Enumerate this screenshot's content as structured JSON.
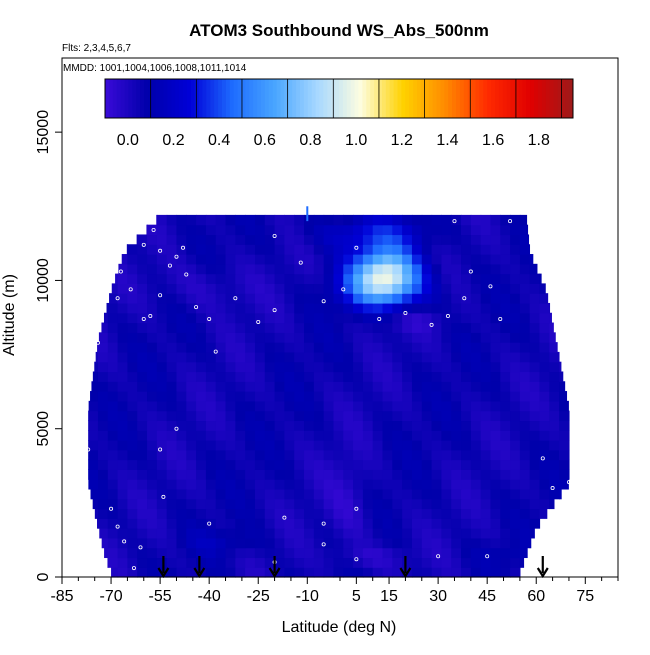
{
  "chart_data": {
    "type": "heatmap",
    "title": "ATOM3 Southbound WS_Abs_500nm",
    "subtitle_flights": "Flts: 2,3,4,5,6,7",
    "subtitle_dates": "MMDD: 1001,1004,1006,1008,1011,1014",
    "xlabel": "Latitude (deg N)",
    "ylabel": "Altitude (m)",
    "xlim": [
      -85,
      85
    ],
    "ylim": [
      0,
      17500
    ],
    "x_ticks": [
      -85,
      -70,
      -55,
      -40,
      -25,
      -10,
      5,
      15,
      30,
      45,
      60,
      75
    ],
    "x_minor_ticks": [
      -80,
      -75,
      -65,
      -60,
      -50,
      -45,
      -35,
      -30,
      -20,
      -15,
      0,
      10,
      20,
      25,
      35,
      40,
      50,
      55,
      65,
      70,
      80,
      85
    ],
    "y_ticks": [
      0,
      5000,
      10000,
      15000
    ],
    "grid": false,
    "colorbar": {
      "placement": "top",
      "range": [
        -0.1,
        1.95
      ],
      "ticks": [
        0.0,
        0.2,
        0.4,
        0.6,
        0.8,
        1.0,
        1.2,
        1.4,
        1.6,
        1.8
      ],
      "tick_labels": [
        "0.0",
        "0.2",
        "0.4",
        "0.6",
        "0.8",
        "1.0",
        "1.2",
        "1.4",
        "1.6",
        "1.8"
      ],
      "colors": [
        "#3a0ad8",
        "#0000aa",
        "#0000d8",
        "#1e6cff",
        "#4aa6ff",
        "#a8d8ff",
        "#fdfde0",
        "#ffd200",
        "#ff8a00",
        "#ff2a00",
        "#e00000",
        "#9e1a1a"
      ]
    },
    "arrow_latitudes": [
      -54,
      -43,
      -20,
      20,
      62
    ],
    "field": {
      "lat_range": [
        -77,
        70
      ],
      "lat_step": 3,
      "alt_step": 330,
      "lat_extents": [
        {
          "alt": 0,
          "min": -70,
          "max": 55
        },
        {
          "alt": 600,
          "min": -72,
          "max": 57
        },
        {
          "alt": 1500,
          "min": -74,
          "max": 60
        },
        {
          "alt": 3000,
          "min": -77,
          "max": 70
        },
        {
          "alt": 5500,
          "min": -77,
          "max": 70
        },
        {
          "alt": 7800,
          "min": -74,
          "max": 66
        },
        {
          "alt": 9500,
          "min": -70,
          "max": 63
        },
        {
          "alt": 10800,
          "min": -66,
          "max": 58
        },
        {
          "alt": 11900,
          "min": -56,
          "max": 57
        }
      ],
      "background_value": 0.05,
      "features": [
        {
          "lat": 14,
          "alt": 10300,
          "sx": 7,
          "sy": 600,
          "amp": 0.75
        },
        {
          "lat": 13,
          "alt": 9700,
          "sx": 9,
          "sy": 500,
          "amp": 0.35
        },
        {
          "lat": 10,
          "alt": 11600,
          "sx": 12,
          "sy": 400,
          "amp": 0.2
        },
        {
          "lat": -42,
          "alt": 9800,
          "sx": 10,
          "sy": 600,
          "amp": -0.08
        },
        {
          "lat": 22,
          "alt": 8700,
          "sx": 8,
          "sy": 300,
          "amp": -0.07
        },
        {
          "lat": 3,
          "alt": 2300,
          "sx": 5,
          "sy": 1200,
          "amp": -0.09
        },
        {
          "lat": 10,
          "alt": 700,
          "sx": 8,
          "sy": 250,
          "amp": -0.08
        },
        {
          "lat": -35,
          "alt": 1200,
          "sx": 8,
          "sy": 300,
          "amp": 0.08
        },
        {
          "lat": 50,
          "alt": 800,
          "sx": 6,
          "sy": 250,
          "amp": 0.06
        }
      ],
      "obs_points": [
        [
          -74,
          9800
        ],
        [
          -68,
          9400
        ],
        [
          -64,
          9700
        ],
        [
          -60,
          8700
        ],
        [
          -58,
          8800
        ],
        [
          -55,
          9500
        ],
        [
          -52,
          10500
        ],
        [
          -50,
          10800
        ],
        [
          -48,
          11100
        ],
        [
          -47,
          10200
        ],
        [
          -44,
          9100
        ],
        [
          -40,
          8700
        ],
        [
          -32,
          9400
        ],
        [
          -25,
          8600
        ],
        [
          -20,
          9000
        ],
        [
          -12,
          10600
        ],
        [
          -5,
          9300
        ],
        [
          1,
          9700
        ],
        [
          5,
          11100
        ],
        [
          12,
          8700
        ],
        [
          20,
          8900
        ],
        [
          28,
          8500
        ],
        [
          33,
          8800
        ],
        [
          38,
          9400
        ],
        [
          40,
          10300
        ],
        [
          46,
          9800
        ],
        [
          49,
          8700
        ],
        [
          52,
          12000
        ],
        [
          -38,
          7600
        ],
        [
          -74,
          7900
        ],
        [
          -50,
          5000
        ],
        [
          -55,
          4300
        ],
        [
          -70,
          2300
        ],
        [
          -68,
          1700
        ],
        [
          -66,
          1200
        ],
        [
          -61,
          1000
        ],
        [
          -54,
          2700
        ],
        [
          -40,
          1800
        ],
        [
          -5,
          1800
        ],
        [
          5,
          2300
        ],
        [
          -17,
          2000
        ],
        [
          -5,
          1100
        ],
        [
          -20,
          500
        ],
        [
          5,
          600
        ],
        [
          30,
          700
        ],
        [
          45,
          700
        ],
        [
          62,
          4000
        ],
        [
          65,
          3000
        ],
        [
          -73,
          600
        ],
        [
          -63,
          300
        ],
        [
          -60,
          11200
        ],
        [
          -67,
          10300
        ],
        [
          -57,
          11700
        ],
        [
          -55,
          11000
        ],
        [
          -20,
          11500
        ],
        [
          35,
          12000
        ],
        [
          70,
          3200
        ],
        [
          -77,
          4300
        ]
      ]
    }
  }
}
